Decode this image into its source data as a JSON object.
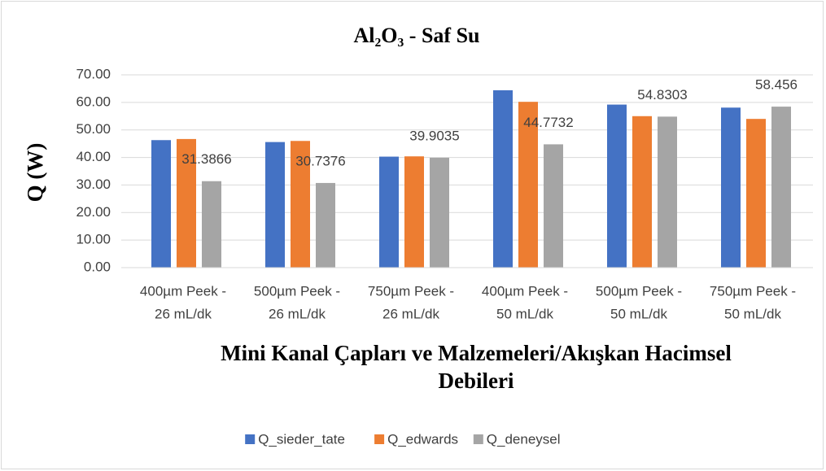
{
  "chart_data": {
    "type": "bar",
    "title": "Al₂O₃ - Saf Su",
    "xlabel": [
      "Mini Kanal Çapları ve Malzemeleri/Akışkan Hacimsel",
      "Debileri"
    ],
    "ylabel": "Q (W)",
    "categories": [
      [
        "400µm Peek -",
        "26 mL/dk"
      ],
      [
        "500µm Peek -",
        "26 mL/dk"
      ],
      [
        "750µm Peek -",
        "26 mL/dk"
      ],
      [
        "400µm Peek -",
        "50 mL/dk"
      ],
      [
        "500µm Peek -",
        "50 mL/dk"
      ],
      [
        "750µm Peek -",
        "50 mL/dk"
      ]
    ],
    "series": [
      {
        "name": "Q_sieder_tate",
        "color": "#4472c4",
        "values": [
          46.3,
          45.6,
          40.3,
          64.4,
          59.2,
          58.1
        ],
        "data_labels": false
      },
      {
        "name": "Q_edwards",
        "color": "#ed7d31",
        "values": [
          46.7,
          46.0,
          40.4,
          60.2,
          55.0,
          54.0
        ],
        "data_labels": false
      },
      {
        "name": "Q_deneysel",
        "color": "#a5a5a5",
        "values": [
          31.3866,
          30.7376,
          39.9035,
          44.7732,
          54.8303,
          58.456
        ],
        "data_labels": true
      }
    ],
    "ylim": [
      0,
      70
    ],
    "yticks": [
      {
        "value": 0,
        "label": "0.00"
      },
      {
        "value": 10,
        "label": "10.00"
      },
      {
        "value": 20,
        "label": "20.00"
      },
      {
        "value": 30,
        "label": "30.00"
      },
      {
        "value": 40,
        "label": "40.00"
      },
      {
        "value": 50,
        "label": "50.00"
      },
      {
        "value": 60,
        "label": "60.00"
      },
      {
        "value": 70,
        "label": "70.00"
      }
    ],
    "grid": true,
    "legend": "bottom"
  }
}
